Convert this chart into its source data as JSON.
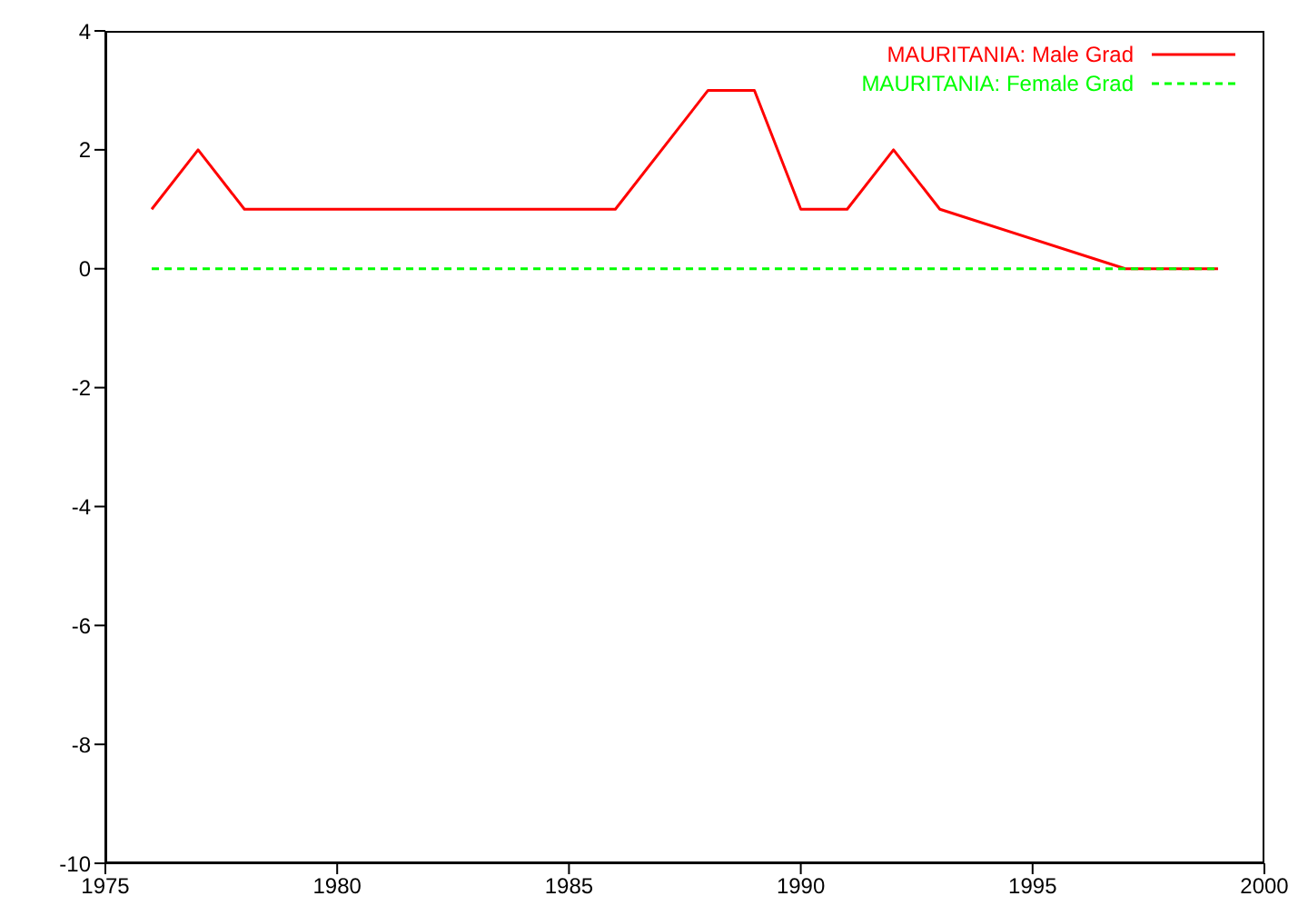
{
  "chart_data": {
    "type": "line",
    "series": [
      {
        "name": "MAURITANIA: Male Grad",
        "color": "#ff0000",
        "line_style": "solid",
        "x": [
          1976,
          1977,
          1978,
          1986,
          1988,
          1989,
          1990,
          1991,
          1992,
          1993,
          1997,
          1999
        ],
        "values": [
          1,
          2,
          1,
          1,
          3,
          3,
          1,
          1,
          2,
          1,
          0,
          0
        ]
      },
      {
        "name": "MAURITANIA: Female Grad",
        "color": "#00ff00",
        "line_style": "dashed",
        "x": [
          1976,
          1999
        ],
        "values": [
          0,
          0
        ]
      }
    ],
    "xlim": [
      1975,
      2000
    ],
    "xticks": [
      1975,
      1980,
      1985,
      1990,
      1995,
      2000
    ],
    "ylim": [
      -10,
      4
    ],
    "yticks": [
      -10,
      -8,
      -6,
      -4,
      -2,
      0,
      2,
      4
    ],
    "legend": "top right",
    "marker": "none"
  }
}
